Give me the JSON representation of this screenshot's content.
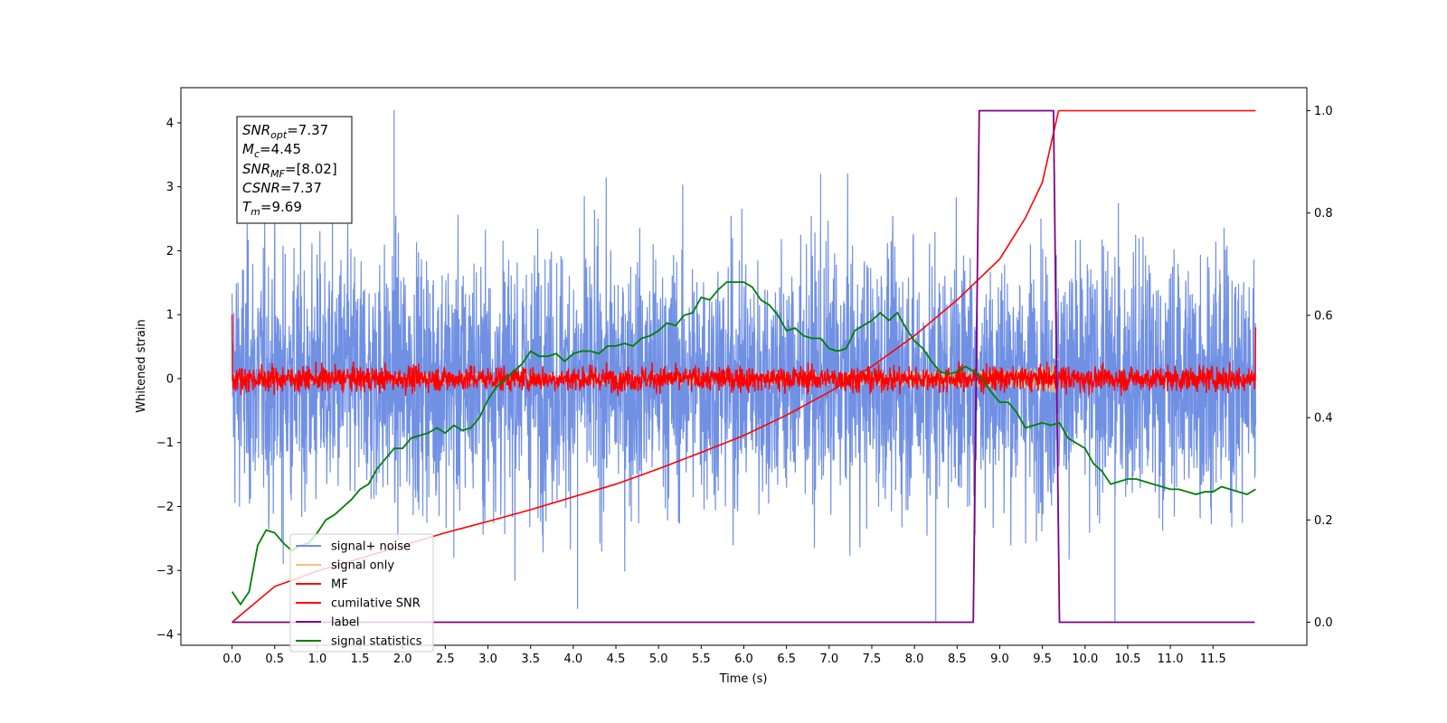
{
  "chart_data": {
    "type": "line",
    "xlabel": "Time (s)",
    "ylabel": "Whitened strain",
    "xlim": [
      -0.6,
      12.6
    ],
    "ylim": [
      -4.17,
      4.55
    ],
    "ylim_right": [
      -0.045,
      1.045
    ],
    "x_ticks": [
      "0.0",
      "0.5",
      "1.0",
      "1.5",
      "2.0",
      "2.5",
      "3.0",
      "3.5",
      "4.0",
      "4.5",
      "5.0",
      "5.5",
      "6.0",
      "6.5",
      "7.0",
      "7.5",
      "8.0",
      "8.5",
      "9.0",
      "9.5",
      "10.0",
      "10.5",
      "11.0",
      "11.5"
    ],
    "y_ticks": [
      "4",
      "3",
      "2",
      "1",
      "0",
      "−1",
      "−2",
      "−3",
      "−4"
    ],
    "y_ticks_right": [
      "1.0",
      "0.8",
      "0.6",
      "0.4",
      "0.2",
      "0.0"
    ],
    "info_box": {
      "snr_opt": {
        "base": "SNR",
        "sub": "opt",
        "value": "=7.37"
      },
      "mc": {
        "base": "M",
        "sub": "c",
        "value": "=4.45"
      },
      "snr_mf": {
        "base": "SNR",
        "sub": "MF",
        "value": "=[8.02]"
      },
      "csnr": {
        "base": "CSNR",
        "value": "=7.37"
      },
      "tm": {
        "base": "T",
        "sub": "m",
        "value": "=9.69"
      }
    },
    "legend": {
      "placement": "lower-left",
      "entries": [
        "signal+ noise",
        "signal only",
        "MF",
        "cumilative SNR",
        "label",
        "signal statistics"
      ]
    },
    "series": [
      {
        "name": "signal+ noise",
        "axis": "left",
        "color": "#7090e4",
        "kind": "noise",
        "x_start": 0.0,
        "x_end": 12.0,
        "amplitude": 1.0,
        "peak_max": 4.2,
        "peak_min": -3.6
      },
      {
        "name": "signal only",
        "axis": "left",
        "color": "#f3c07a",
        "kind": "chirp",
        "x_start": 0.0,
        "x_end": 9.69,
        "max_amplitude": 0.33
      },
      {
        "name": "MF",
        "axis": "left",
        "color": "#ff0000",
        "kind": "noise",
        "x_start": 0.0,
        "x_end": 12.0,
        "amplitude": 0.1,
        "start_value": 1.0,
        "end_value": 0.8
      },
      {
        "name": "cumilative SNR",
        "axis": "right",
        "color": "#ff0000",
        "x": [
          0.0,
          0.5,
          1.0,
          1.5,
          2.0,
          2.5,
          3.0,
          3.5,
          4.0,
          4.5,
          5.0,
          5.5,
          6.0,
          6.5,
          7.0,
          7.5,
          8.0,
          8.5,
          9.0,
          9.3,
          9.5,
          9.69,
          12.0
        ],
        "y": [
          0.0,
          0.07,
          0.1,
          0.125,
          0.15,
          0.175,
          0.197,
          0.22,
          0.245,
          0.27,
          0.3,
          0.332,
          0.365,
          0.405,
          0.45,
          0.5,
          0.56,
          0.63,
          0.71,
          0.79,
          0.86,
          1.0,
          1.0
        ]
      },
      {
        "name": "label",
        "axis": "right",
        "color": "#800080",
        "x": [
          0.0,
          8.69,
          8.76,
          9.63,
          9.7,
          11.99
        ],
        "y": [
          0.0,
          0.0,
          1.0,
          1.0,
          0.0,
          0.0
        ]
      },
      {
        "name": "signal statistics",
        "axis": "right",
        "color": "#008000",
        "x": [
          0.0,
          0.1,
          0.2,
          0.3,
          0.4,
          0.5,
          0.6,
          0.7,
          0.8,
          0.9,
          1.0,
          1.1,
          1.2,
          1.3,
          1.4,
          1.5,
          1.6,
          1.7,
          1.8,
          1.9,
          2.0,
          2.1,
          2.2,
          2.3,
          2.4,
          2.5,
          2.6,
          2.7,
          2.8,
          2.9,
          3.0,
          3.1,
          3.2,
          3.3,
          3.4,
          3.5,
          3.6,
          3.7,
          3.8,
          3.9,
          4.0,
          4.1,
          4.2,
          4.3,
          4.4,
          4.5,
          4.6,
          4.7,
          4.8,
          4.9,
          5.0,
          5.1,
          5.2,
          5.3,
          5.4,
          5.5,
          5.6,
          5.7,
          5.8,
          5.9,
          6.0,
          6.1,
          6.2,
          6.3,
          6.4,
          6.5,
          6.6,
          6.7,
          6.8,
          6.9,
          7.0,
          7.1,
          7.2,
          7.3,
          7.4,
          7.5,
          7.6,
          7.7,
          7.8,
          7.9,
          8.0,
          8.1,
          8.2,
          8.3,
          8.4,
          8.5,
          8.6,
          8.7,
          8.8,
          8.9,
          9.0,
          9.1,
          9.2,
          9.3,
          9.4,
          9.5,
          9.6,
          9.7,
          9.8,
          9.9,
          10.0,
          10.1,
          10.2,
          10.3,
          10.4,
          10.5,
          10.6,
          10.7,
          10.8,
          10.9,
          11.0,
          11.1,
          11.2,
          11.3,
          11.4,
          11.5,
          11.6,
          11.7,
          11.8,
          11.9,
          12.0
        ],
        "y": [
          0.06,
          0.035,
          0.06,
          0.15,
          0.18,
          0.175,
          0.155,
          0.14,
          0.15,
          0.155,
          0.175,
          0.2,
          0.21,
          0.225,
          0.24,
          0.26,
          0.27,
          0.3,
          0.32,
          0.34,
          0.34,
          0.36,
          0.365,
          0.37,
          0.38,
          0.37,
          0.385,
          0.375,
          0.38,
          0.4,
          0.435,
          0.46,
          0.475,
          0.49,
          0.505,
          0.53,
          0.52,
          0.52,
          0.525,
          0.51,
          0.525,
          0.53,
          0.53,
          0.525,
          0.54,
          0.54,
          0.545,
          0.54,
          0.555,
          0.56,
          0.57,
          0.585,
          0.58,
          0.6,
          0.605,
          0.635,
          0.63,
          0.65,
          0.665,
          0.665,
          0.665,
          0.655,
          0.63,
          0.62,
          0.6,
          0.57,
          0.575,
          0.56,
          0.555,
          0.555,
          0.535,
          0.53,
          0.535,
          0.57,
          0.58,
          0.59,
          0.605,
          0.59,
          0.605,
          0.575,
          0.55,
          0.535,
          0.51,
          0.49,
          0.485,
          0.49,
          0.5,
          0.49,
          0.475,
          0.45,
          0.43,
          0.43,
          0.41,
          0.38,
          0.385,
          0.39,
          0.385,
          0.39,
          0.36,
          0.35,
          0.34,
          0.31,
          0.295,
          0.27,
          0.275,
          0.28,
          0.28,
          0.275,
          0.27,
          0.265,
          0.26,
          0.26,
          0.255,
          0.25,
          0.255,
          0.255,
          0.265,
          0.26,
          0.255,
          0.25,
          0.26
        ]
      }
    ]
  }
}
